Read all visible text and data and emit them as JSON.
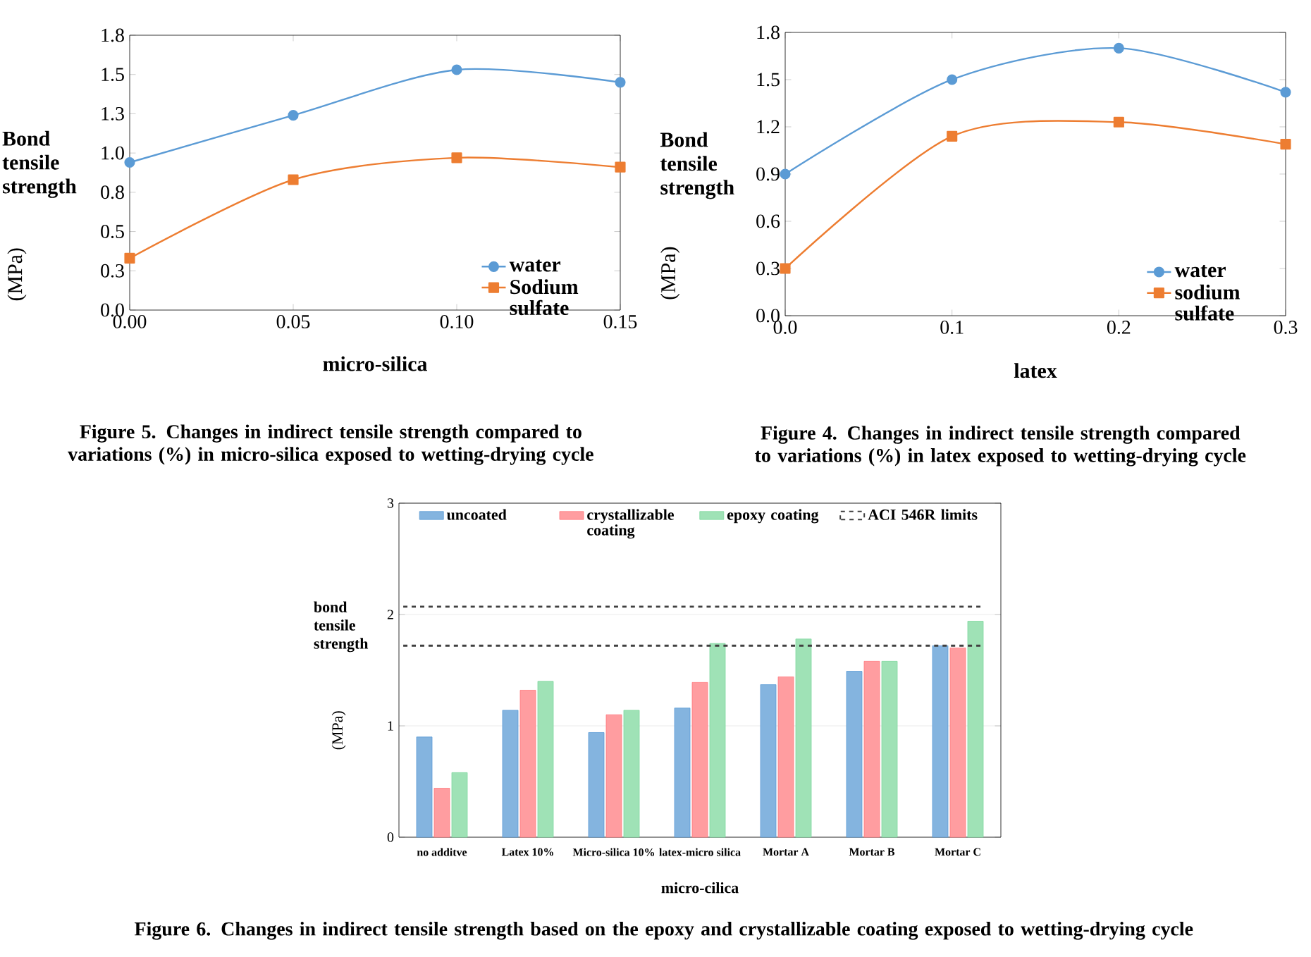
{
  "chart_data": [
    {
      "type": "line",
      "xlabel": "micro-silica",
      "ylabel": "Bond tensile strength",
      "x": [
        0,
        0.05,
        0.1,
        0.15
      ],
      "series": [
        {
          "name": "water",
          "color": "#5b9bd5",
          "marker": "circle",
          "values": [
            0.94,
            1.24,
            1.53,
            1.45
          ]
        },
        {
          "name": "Sodium sulfate",
          "color": "#ed7d31",
          "marker": "square",
          "values": [
            0.33,
            0.83,
            0.97,
            0.91
          ]
        }
      ],
      "xlim": [
        0,
        0.15
      ],
      "ylim": [
        0,
        1.75
      ],
      "xticks": [
        {
          "value": 0,
          "label": "0.00"
        },
        {
          "value": 0.05,
          "label": "0.05"
        },
        {
          "value": 0.1,
          "label": "0.10"
        },
        {
          "value": 0.15,
          "label": "0.15"
        }
      ],
      "yticks": [
        {
          "value": 0,
          "label": "0.0"
        },
        {
          "value": 0.25,
          "label": "0.3"
        },
        {
          "value": 0.5,
          "label": "0.5"
        },
        {
          "value": 0.75,
          "label": "0.8"
        },
        {
          "value": 1.0,
          "label": "1.0"
        },
        {
          "value": 1.25,
          "label": "1.3"
        },
        {
          "value": 1.5,
          "label": "1.5"
        },
        {
          "value": 1.75,
          "label": "1.8"
        }
      ],
      "legend": "bottom right",
      "grid": false,
      "annotations": [
        "(MPa)",
        "Figure 5. Changes in indirect tensile strength compared to variations (%) in micro-silica exposed to wetting-drying cycle"
      ]
    },
    {
      "type": "line",
      "xlabel": "latex",
      "ylabel": "Bond tensile strength",
      "x": [
        0,
        0.1,
        0.2,
        0.3
      ],
      "series": [
        {
          "name": "water",
          "color": "#5b9bd5",
          "marker": "circle",
          "values": [
            0.9,
            1.5,
            1.7,
            1.42
          ]
        },
        {
          "name": "sodium sulfate",
          "color": "#ed7d31",
          "marker": "square",
          "values": [
            0.3,
            1.14,
            1.23,
            1.09
          ]
        }
      ],
      "xlim": [
        0,
        0.3
      ],
      "ylim": [
        0,
        1.8
      ],
      "xticks": [
        {
          "value": 0,
          "label": "0.0"
        },
        {
          "value": 0.1,
          "label": "0.1"
        },
        {
          "value": 0.2,
          "label": "0.2"
        },
        {
          "value": 0.3,
          "label": "0.3"
        }
      ],
      "yticks": [
        {
          "value": 0,
          "label": "0.0"
        },
        {
          "value": 0.3,
          "label": "0.3"
        },
        {
          "value": 0.6,
          "label": "0.6"
        },
        {
          "value": 0.9,
          "label": "0.9"
        },
        {
          "value": 1.2,
          "label": "1.2"
        },
        {
          "value": 1.5,
          "label": "1.5"
        },
        {
          "value": 1.8,
          "label": "1.8"
        }
      ],
      "legend": "bottom right",
      "grid": false,
      "annotations": [
        "(MPa)",
        "Figure 4. Changes in indirect tensile strength compared to variations (%) in latex exposed to wetting-drying cycle"
      ]
    },
    {
      "type": "bar",
      "xlabel": "micro-cilica",
      "ylabel": "bond tensile strength",
      "categories": [
        "no additve",
        "Latex 10%",
        "Micro-silica 10%",
        "latex-micro silica",
        "Mortar A",
        "Mortar B",
        "Mortar C"
      ],
      "series": [
        {
          "name": "uncoated",
          "color": "#5b9bd5",
          "values": [
            0.9,
            1.14,
            0.94,
            1.16,
            1.37,
            1.49,
            1.72
          ]
        },
        {
          "name": "crystallizable coating",
          "color": "#ff7c80",
          "values": [
            0.44,
            1.32,
            1.1,
            1.39,
            1.44,
            1.58,
            1.7
          ]
        },
        {
          "name": "epoxy coating",
          "color": "#7fd89e",
          "values": [
            0.58,
            1.4,
            1.14,
            1.74,
            1.78,
            1.58,
            1.94
          ]
        }
      ],
      "ylim": [
        0,
        3
      ],
      "yticks": [
        0,
        1,
        2,
        3
      ],
      "ref_lines": [
        {
          "axis": "y",
          "value": 2.07,
          "label": "ACI 546R limits",
          "color": "#404040",
          "line_style": "dashed"
        },
        {
          "axis": "y",
          "value": 1.72,
          "color": "#404040",
          "line_style": "dashed"
        }
      ],
      "legend": "top",
      "grid": "y",
      "annotations": [
        "(MPa)",
        "Figure 6. Changes in indirect tensile strength based on the epoxy and crystallizable coating exposed to wetting-drying cycle"
      ]
    }
  ]
}
